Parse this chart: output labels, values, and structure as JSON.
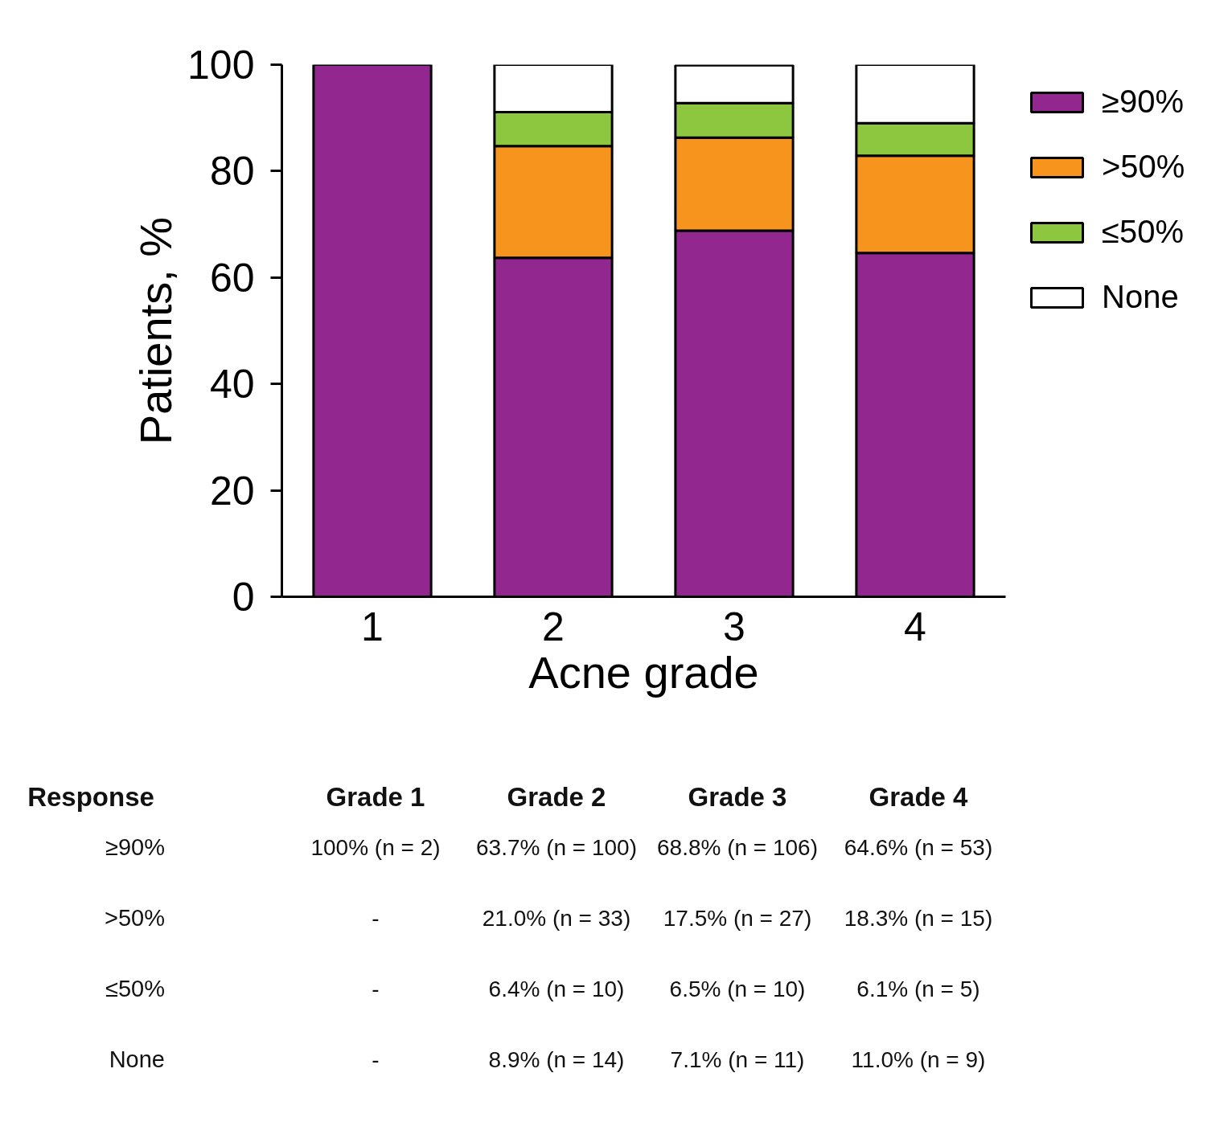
{
  "chart_data": {
    "type": "bar",
    "stacked": true,
    "xlabel": "Acne grade",
    "ylabel": "Patients, %",
    "categories": [
      "1",
      "2",
      "3",
      "4"
    ],
    "ylim": [
      0,
      100
    ],
    "yticks": [
      0,
      20,
      40,
      60,
      80,
      100
    ],
    "grid": false,
    "legend": "top right",
    "annotations": [
      "Response",
      "Grade 1",
      "Grade 2",
      "Grade 3",
      "Grade 4"
    ],
    "series": [
      {
        "name": "≥90%",
        "color": "#92278f",
        "values": [
          100,
          63.7,
          68.8,
          64.6
        ],
        "value_labels": [
          "100%   (n = 2)",
          "63.7% (n = 100)",
          "68.8% (n = 106)",
          "64.6% (n = 53)"
        ]
      },
      {
        "name": ">50%",
        "color": "#f7941d",
        "values": [
          null,
          21.0,
          17.5,
          18.3
        ],
        "value_labels": [
          "-",
          "21.0% (n = 33)",
          "17.5% (n = 27)",
          "18.3% (n = 15)"
        ]
      },
      {
        "name": "≤50%",
        "color": "#8dc63f",
        "values": [
          null,
          6.4,
          6.5,
          6.1
        ],
        "value_labels": [
          "-",
          "6.4% (n = 10)",
          "6.5% (n = 10)",
          "6.1% (n = 5)"
        ]
      },
      {
        "name": "None",
        "color": "#ffffff",
        "values": [
          null,
          8.9,
          7.1,
          11.0
        ],
        "value_labels": [
          "-",
          "8.9% (n = 14)",
          "7.1% (n = 11)",
          "11.0% (n = 9)"
        ]
      }
    ]
  }
}
